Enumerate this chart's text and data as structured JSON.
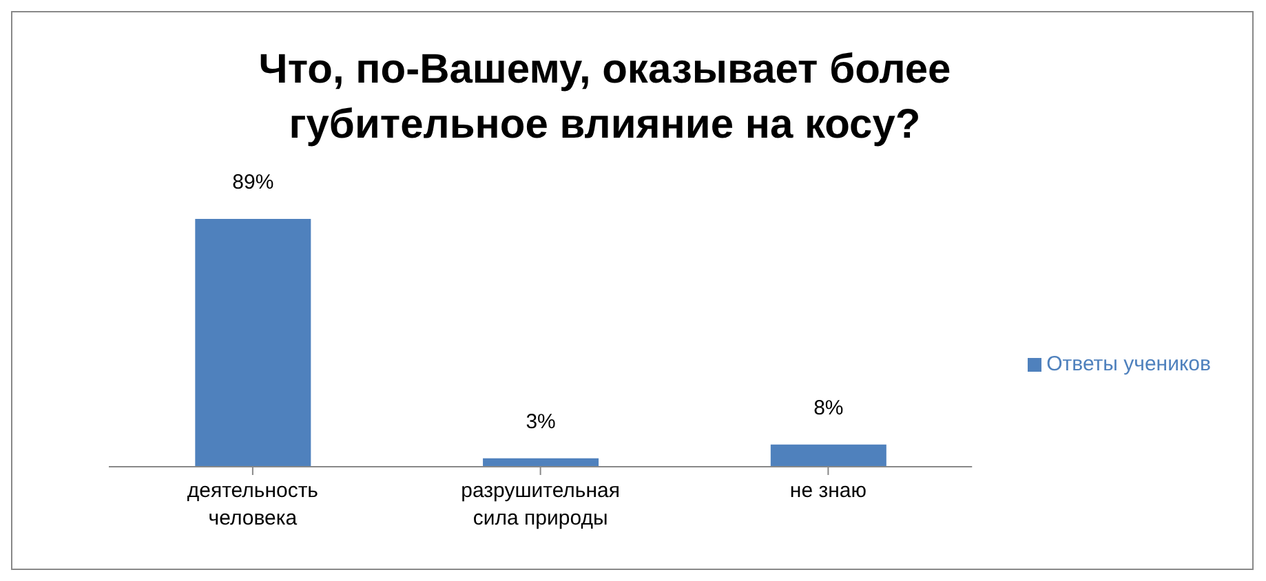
{
  "chart_data": {
    "type": "bar",
    "title": "Что, по-Вашему, оказывает более губительное влияние на косу?",
    "categories": [
      "деятельность человека",
      "разрушительная сила природы",
      "не знаю"
    ],
    "series": [
      {
        "name": "Ответы учеников",
        "color": "#4f81bd",
        "values": [
          89,
          3,
          8
        ],
        "value_labels": [
          "89%",
          "3%",
          "8%"
        ]
      }
    ],
    "legend": "right"
  }
}
